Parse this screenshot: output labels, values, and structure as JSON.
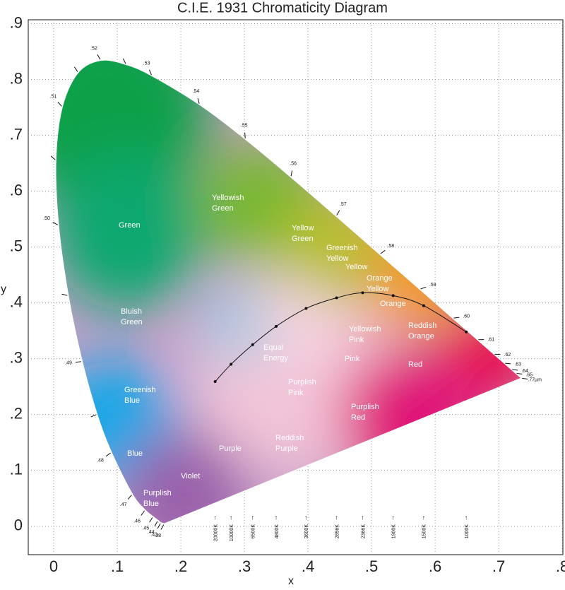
{
  "chart_data": {
    "type": "chromaticity",
    "title": "C.I.E. 1931 Chromaticity Diagram",
    "x_label": "x",
    "y_label": "y",
    "xlim": [
      -0.04,
      0.801
    ],
    "ylim": [
      -0.051,
      0.907
    ],
    "xticks": [
      0,
      {
        "value": 0.1,
        "label": ".1"
      },
      {
        "value": 0.2,
        "label": ".2"
      },
      {
        "value": 0.3,
        "label": ".3"
      },
      {
        "value": 0.4,
        "label": ".4"
      },
      {
        "value": 0.5,
        "label": ".5"
      },
      {
        "value": 0.6,
        "label": ".6"
      },
      {
        "value": 0.7,
        "label": ".7"
      },
      {
        "value": 0.8,
        "label": ".8"
      }
    ],
    "yticks": [
      0,
      {
        "value": 0.1,
        "label": ".1"
      },
      {
        "value": 0.2,
        "label": ".2"
      },
      {
        "value": 0.3,
        "label": ".3"
      },
      {
        "value": 0.4,
        "label": ".4"
      },
      {
        "value": 0.5,
        "label": ".5"
      },
      {
        "value": 0.6,
        "label": ".6"
      },
      {
        "value": 0.7,
        "label": ".7"
      },
      {
        "value": 0.8,
        "label": ".8"
      },
      {
        "value": 0.9,
        "label": ".9"
      }
    ],
    "grid": true,
    "spectral_locus": {
      "labels": [
        ".38",
        ".43",
        ".44",
        ".45",
        ".46",
        ".47",
        ".48",
        null,
        ".49",
        null,
        ".50",
        null,
        ".51",
        null,
        ".52",
        null,
        ".53",
        ".54",
        ".55",
        ".56",
        ".57",
        ".58",
        ".59",
        ".60",
        ".61",
        ".62",
        ".63",
        ".64",
        ".65",
        ".77µm"
      ],
      "x": [
        0.1741,
        0.1689,
        0.1644,
        0.1566,
        0.144,
        0.1241,
        0.0913,
        0.0687,
        0.0454,
        0.0235,
        0.0082,
        0.0039,
        0.0139,
        0.0389,
        0.0743,
        0.1142,
        0.1547,
        0.2296,
        0.3016,
        0.3731,
        0.4441,
        0.5125,
        0.5752,
        0.627,
        0.6658,
        0.6915,
        0.7079,
        0.719,
        0.726,
        0.7347
      ],
      "y": [
        0.005,
        0.0069,
        0.0109,
        0.0177,
        0.0297,
        0.0578,
        0.1327,
        0.2007,
        0.295,
        0.4127,
        0.5384,
        0.6548,
        0.7502,
        0.812,
        0.8338,
        0.8262,
        0.8059,
        0.7543,
        0.6923,
        0.6245,
        0.5547,
        0.4866,
        0.4242,
        0.3725,
        0.334,
        0.3083,
        0.292,
        0.2809,
        0.274,
        0.2653
      ]
    },
    "planckian_locus": {
      "labels": [
        "20000K",
        "10000K",
        "6500K",
        "4800K",
        "3600K",
        "2856K",
        "2366K",
        "1900K",
        "1500K",
        "1000K"
      ],
      "x": [
        0.254,
        0.279,
        0.313,
        0.35,
        0.397,
        0.445,
        0.486,
        0.534,
        0.582,
        0.649
      ],
      "y": [
        0.259,
        0.29,
        0.325,
        0.358,
        0.39,
        0.409,
        0.418,
        0.413,
        0.395,
        0.348
      ]
    },
    "regions": [
      [
        "Green"
      ],
      [
        "Yellowish",
        "Green"
      ],
      [
        "Yellow",
        "Green"
      ],
      [
        "Greenish",
        "Yellow"
      ],
      [
        "Yellow"
      ],
      [
        "Orange",
        "Yellow"
      ],
      [
        "Orange"
      ],
      [
        "Bluish",
        "Green"
      ],
      [
        "Yellowish",
        "Pink"
      ],
      [
        "Reddish",
        "Orange"
      ],
      [
        "Equal",
        "Energy"
      ],
      [
        "Pink"
      ],
      [
        "Red"
      ],
      [
        "Purplish",
        "Pink"
      ],
      [
        "Greenish",
        "Blue"
      ],
      [
        "Purplish",
        "Red"
      ],
      [
        "Reddish",
        "Purple"
      ],
      [
        "Purple"
      ],
      [
        "Blue"
      ],
      [
        "Violet"
      ],
      [
        "Purplish",
        "Blue"
      ]
    ]
  }
}
